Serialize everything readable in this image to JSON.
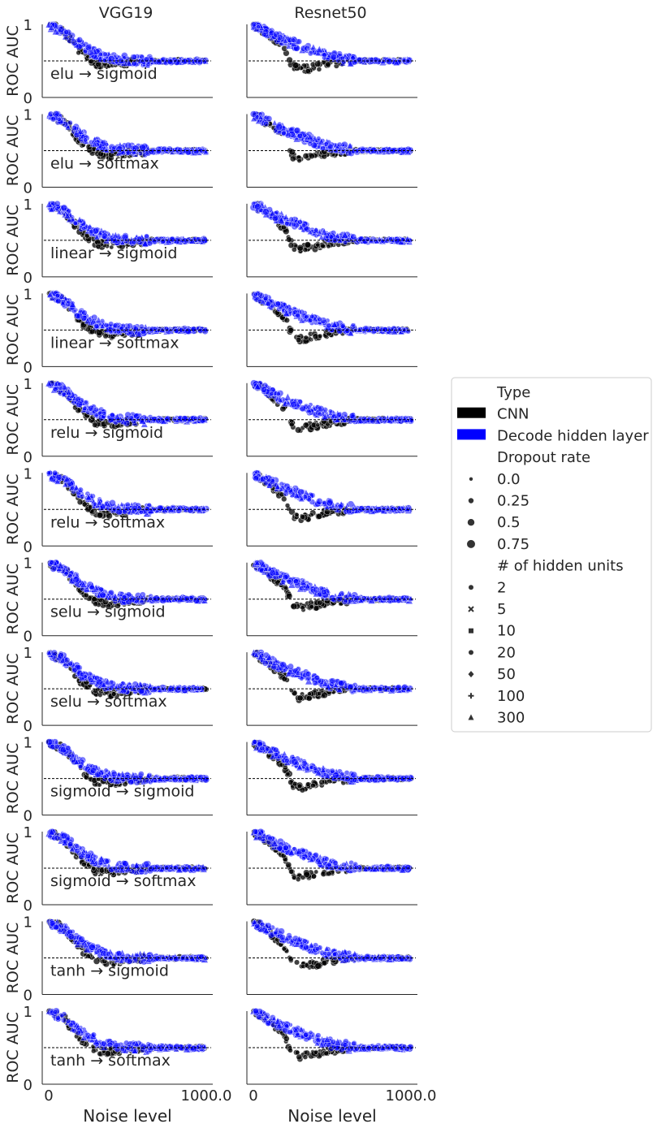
{
  "chart_data": {
    "type": "scatter",
    "layout": "facet grid, 12 rows x 2 columns",
    "columns": [
      "VGG19",
      "Resnet50"
    ],
    "rows": [
      "elu → sigmoid",
      "elu → softmax",
      "linear → sigmoid",
      "linear → softmax",
      "relu → sigmoid",
      "relu → softmax",
      "selu → sigmoid",
      "selu → softmax",
      "sigmoid → sigmoid",
      "sigmoid → softmax",
      "tanh → sigmoid",
      "tanh → softmax"
    ],
    "xlabel": "Noise level",
    "ylabel": "ROC AUC",
    "xticks": [
      "0",
      "1000.0"
    ],
    "yticks": [
      "0",
      "1"
    ],
    "xlim": [
      0,
      1000
    ],
    "ylim": [
      0,
      1
    ],
    "reference_line": {
      "y": 0.5,
      "style": "dashed",
      "color": "#000000"
    },
    "curve_profiles": {
      "VGG19": {
        "decode_hidden_layer": {
          "x": [
            0,
            100,
            200,
            300,
            400,
            500,
            600,
            800,
            1000
          ],
          "y": [
            1.0,
            0.9,
            0.72,
            0.6,
            0.53,
            0.51,
            0.5,
            0.5,
            0.5
          ]
        },
        "cnn": {
          "x": [
            0,
            100,
            200,
            300,
            400,
            500,
            600,
            800,
            1000
          ],
          "y": [
            1.0,
            0.9,
            0.62,
            0.46,
            0.44,
            0.47,
            0.49,
            0.5,
            0.5
          ]
        }
      },
      "Resnet50": {
        "decode_hidden_layer": {
          "x": [
            0,
            100,
            200,
            300,
            400,
            500,
            600,
            800,
            1000
          ],
          "y": [
            1.0,
            0.88,
            0.78,
            0.7,
            0.62,
            0.55,
            0.52,
            0.5,
            0.5
          ]
        },
        "cnn": {
          "x": [
            0,
            100,
            200,
            250,
            300,
            400,
            500,
            600,
            800,
            1000
          ],
          "y": [
            1.0,
            0.85,
            0.65,
            0.42,
            0.38,
            0.42,
            0.47,
            0.49,
            0.5,
            0.5
          ]
        }
      }
    },
    "series": [
      {
        "name": "CNN",
        "color": "#000000"
      },
      {
        "name": "Decode hidden layer",
        "color": "#0000ff"
      }
    ],
    "legend": {
      "placement": "right",
      "type_title": "Type",
      "type_entries": [
        {
          "label": "CNN",
          "color": "#000000"
        },
        {
          "label": "Decode hidden layer",
          "color": "#0000ff"
        }
      ],
      "dropout_title": "Dropout rate",
      "dropout_entries": [
        "0.0",
        "0.25",
        "0.5",
        "0.75"
      ],
      "hidden_title": "# of hidden units",
      "hidden_entries": [
        {
          "label": "2",
          "marker": "circle"
        },
        {
          "label": "5",
          "marker": "x"
        },
        {
          "label": "10",
          "marker": "square"
        },
        {
          "label": "20",
          "marker": "circle"
        },
        {
          "label": "50",
          "marker": "diamond"
        },
        {
          "label": "100",
          "marker": "plus"
        },
        {
          "label": "300",
          "marker": "triangle"
        }
      ]
    },
    "grid": false
  }
}
